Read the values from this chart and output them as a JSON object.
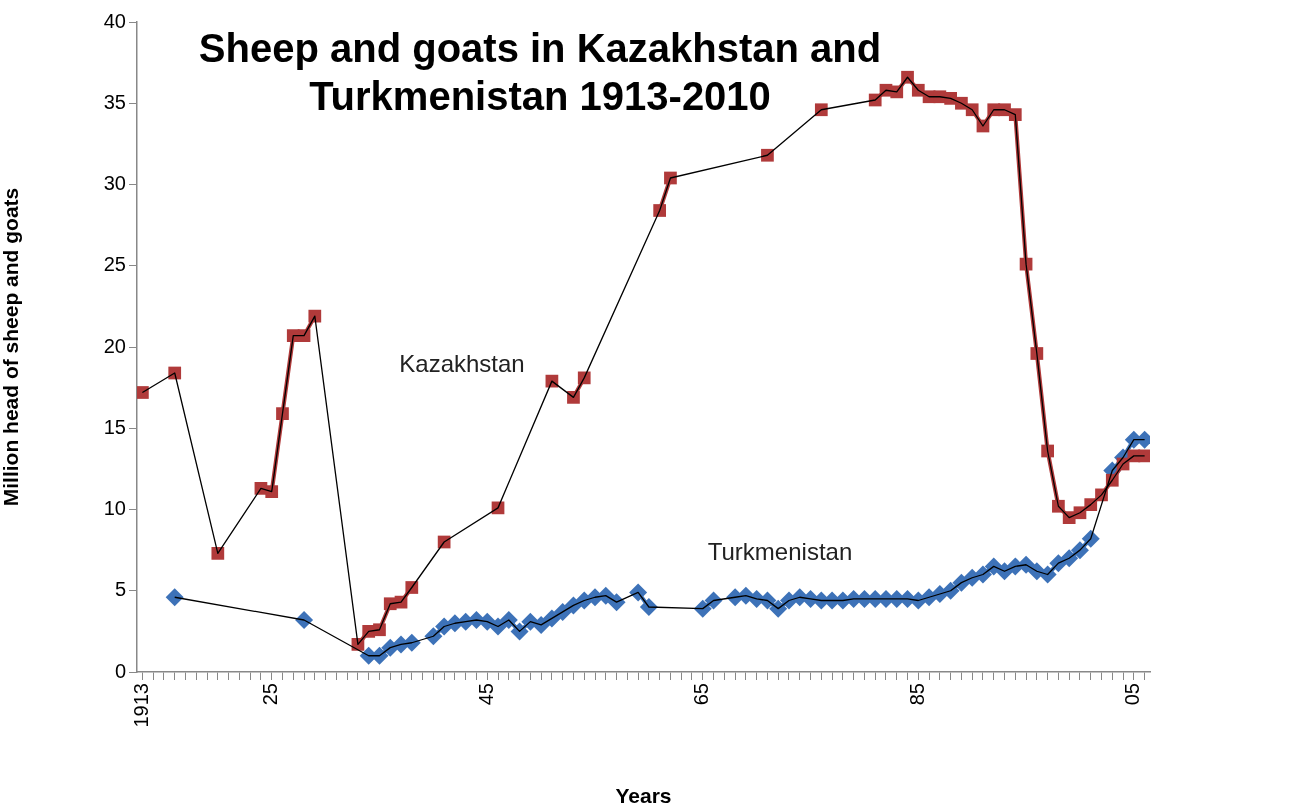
{
  "chart_data": {
    "type": "line",
    "title": "Sheep and goats in Kazakhstan and\nTurkmenistan 1913-2010",
    "xlabel": "Years",
    "ylabel": "Million head of sheep and goats",
    "xlim": [
      1912.5,
      2006.5
    ],
    "xticks": [
      {
        "value": 1913,
        "label": "1913"
      },
      {
        "value": 1914,
        "label": null
      },
      {
        "value": 1915,
        "label": null
      },
      {
        "value": 1916,
        "label": null
      },
      {
        "value": 1917,
        "label": null
      },
      {
        "value": 1918,
        "label": null
      },
      {
        "value": 1919,
        "label": null
      },
      {
        "value": 1920,
        "label": null
      },
      {
        "value": 1921,
        "label": null
      },
      {
        "value": 1922,
        "label": null
      },
      {
        "value": 1923,
        "label": null
      },
      {
        "value": 1924,
        "label": null
      },
      {
        "value": 1925,
        "label": "25"
      },
      {
        "value": 1926,
        "label": null
      },
      {
        "value": 1927,
        "label": null
      },
      {
        "value": 1928,
        "label": null
      },
      {
        "value": 1929,
        "label": null
      },
      {
        "value": 1930,
        "label": null
      },
      {
        "value": 1931,
        "label": null
      },
      {
        "value": 1932,
        "label": null
      },
      {
        "value": 1933,
        "label": null
      },
      {
        "value": 1934,
        "label": null
      },
      {
        "value": 1935,
        "label": null
      },
      {
        "value": 1936,
        "label": null
      },
      {
        "value": 1937,
        "label": null
      },
      {
        "value": 1938,
        "label": null
      },
      {
        "value": 1939,
        "label": null
      },
      {
        "value": 1940,
        "label": null
      },
      {
        "value": 1941,
        "label": null
      },
      {
        "value": 1942,
        "label": null
      },
      {
        "value": 1943,
        "label": null
      },
      {
        "value": 1944,
        "label": null
      },
      {
        "value": 1945,
        "label": "45"
      },
      {
        "value": 1946,
        "label": null
      },
      {
        "value": 1947,
        "label": null
      },
      {
        "value": 1948,
        "label": null
      },
      {
        "value": 1949,
        "label": null
      },
      {
        "value": 1950,
        "label": null
      },
      {
        "value": 1951,
        "label": null
      },
      {
        "value": 1952,
        "label": null
      },
      {
        "value": 1953,
        "label": null
      },
      {
        "value": 1954,
        "label": null
      },
      {
        "value": 1955,
        "label": null
      },
      {
        "value": 1956,
        "label": null
      },
      {
        "value": 1957,
        "label": null
      },
      {
        "value": 1958,
        "label": null
      },
      {
        "value": 1959,
        "label": null
      },
      {
        "value": 1960,
        "label": null
      },
      {
        "value": 1961,
        "label": null
      },
      {
        "value": 1962,
        "label": null
      },
      {
        "value": 1963,
        "label": null
      },
      {
        "value": 1964,
        "label": null
      },
      {
        "value": 1965,
        "label": "65"
      },
      {
        "value": 1966,
        "label": null
      },
      {
        "value": 1967,
        "label": null
      },
      {
        "value": 1968,
        "label": null
      },
      {
        "value": 1969,
        "label": null
      },
      {
        "value": 1970,
        "label": null
      },
      {
        "value": 1971,
        "label": null
      },
      {
        "value": 1972,
        "label": null
      },
      {
        "value": 1973,
        "label": null
      },
      {
        "value": 1974,
        "label": null
      },
      {
        "value": 1975,
        "label": null
      },
      {
        "value": 1976,
        "label": null
      },
      {
        "value": 1977,
        "label": null
      },
      {
        "value": 1978,
        "label": null
      },
      {
        "value": 1979,
        "label": null
      },
      {
        "value": 1980,
        "label": null
      },
      {
        "value": 1981,
        "label": null
      },
      {
        "value": 1982,
        "label": null
      },
      {
        "value": 1983,
        "label": null
      },
      {
        "value": 1984,
        "label": null
      },
      {
        "value": 1985,
        "label": "85"
      },
      {
        "value": 1986,
        "label": null
      },
      {
        "value": 1987,
        "label": null
      },
      {
        "value": 1988,
        "label": null
      },
      {
        "value": 1989,
        "label": null
      },
      {
        "value": 1990,
        "label": null
      },
      {
        "value": 1991,
        "label": null
      },
      {
        "value": 1992,
        "label": null
      },
      {
        "value": 1993,
        "label": null
      },
      {
        "value": 1994,
        "label": null
      },
      {
        "value": 1995,
        "label": null
      },
      {
        "value": 1996,
        "label": null
      },
      {
        "value": 1997,
        "label": null
      },
      {
        "value": 1998,
        "label": null
      },
      {
        "value": 1999,
        "label": null
      },
      {
        "value": 2000,
        "label": null
      },
      {
        "value": 2001,
        "label": null
      },
      {
        "value": 2002,
        "label": null
      },
      {
        "value": 2003,
        "label": null
      },
      {
        "value": 2004,
        "label": null
      },
      {
        "value": 2005,
        "label": "05"
      },
      {
        "value": 2006,
        "label": null
      }
    ],
    "ylim": [
      0,
      40
    ],
    "yticks": [
      0,
      5,
      10,
      15,
      20,
      25,
      30,
      35,
      40
    ],
    "grid": false,
    "legend": false,
    "series": [
      {
        "name": "Kazakhstan",
        "type": "line",
        "marker": "square",
        "color": "#b03a3a",
        "x": [
          1913,
          1914,
          1916,
          1917,
          1920,
          1921,
          1924,
          1925,
          1926,
          1927,
          1928,
          1929,
          1930,
          1933,
          1934,
          1935,
          1936,
          1937,
          1938,
          1939,
          1941,
          1942,
          1946,
          1947,
          1951,
          1952,
          1953,
          1954,
          1955,
          1961,
          1962,
          1963,
          1971,
          1972,
          1976,
          1977,
          1981,
          1982,
          1983,
          1984,
          1985,
          1986,
          1987,
          1988,
          1989,
          1990,
          1991,
          1992,
          1993,
          1994,
          1995,
          1996,
          1997,
          1998,
          1999,
          2000,
          2001,
          2002,
          2003,
          2004,
          2005,
          2006
        ],
        "values": [
          17.2,
          null,
          18.4,
          null,
          7.3,
          null,
          11.3,
          11.1,
          15.9,
          20.7,
          20.7,
          21.9,
          null,
          1.7,
          2.5,
          2.6,
          4.2,
          4.3,
          5.2,
          null,
          8.0,
          null,
          10.1,
          null,
          17.9,
          null,
          16.9,
          18.1,
          null,
          28.4,
          30.4,
          null,
          31.8,
          null,
          34.6,
          null,
          35.2,
          35.8,
          35.7,
          36.6,
          35.8,
          35.4,
          35.4,
          35.3,
          35.0,
          34.6,
          33.6,
          34.6,
          34.6,
          34.3,
          25.1,
          19.6,
          13.6,
          10.2,
          9.5,
          9.8,
          10.3,
          10.9,
          11.8,
          12.8,
          13.3,
          13.3
        ]
      },
      {
        "name": "Turkmenistan",
        "type": "line",
        "marker": "diamond",
        "color": "#3d72b8",
        "x": [
          1916,
          1917,
          1928,
          1929,
          1934,
          1935,
          1936,
          1937,
          1938,
          1939,
          1940,
          1941,
          1942,
          1943,
          1944,
          1945,
          1946,
          1947,
          1948,
          1949,
          1950,
          1951,
          1952,
          1953,
          1954,
          1955,
          1956,
          1957,
          1958,
          1959,
          1960,
          1961,
          1965,
          1966,
          1967,
          1968,
          1969,
          1970,
          1971,
          1972,
          1973,
          1974,
          1975,
          1976,
          1977,
          1978,
          1979,
          1980,
          1981,
          1982,
          1983,
          1984,
          1985,
          1986,
          1987,
          1988,
          1989,
          1990,
          1991,
          1992,
          1993,
          1994,
          1995,
          1996,
          1997,
          1998,
          1999,
          2000,
          2001,
          2002,
          2003,
          2004,
          2005,
          2006
        ],
        "values": [
          4.6,
          null,
          3.2,
          null,
          1.0,
          1.0,
          1.5,
          1.7,
          1.8,
          null,
          2.2,
          2.8,
          3.0,
          3.1,
          3.2,
          3.1,
          2.8,
          3.2,
          2.5,
          3.1,
          2.9,
          3.3,
          3.7,
          4.1,
          4.4,
          4.6,
          4.7,
          4.3,
          null,
          4.9,
          4.0,
          null,
          3.9,
          4.4,
          null,
          4.6,
          4.7,
          4.5,
          4.4,
          3.9,
          4.4,
          4.6,
          4.5,
          4.4,
          4.4,
          4.4,
          4.5,
          4.5,
          4.5,
          4.5,
          4.5,
          4.5,
          4.4,
          4.6,
          4.8,
          5.0,
          5.5,
          5.8,
          6.0,
          6.5,
          6.2,
          6.5,
          6.6,
          6.2,
          6.0,
          6.7,
          7.0,
          7.5,
          8.2,
          null,
          12.4,
          13.2,
          14.3,
          14.3
        ]
      },
      {
        "type": "line",
        "marker": "none",
        "color": "#000000",
        "x": [
          1913,
          1916,
          1920,
          1924,
          1925,
          1926,
          1927,
          1928,
          1929,
          1933,
          1934,
          1935,
          1936,
          1937,
          1938,
          1941,
          1946,
          1951,
          1953,
          1954,
          1961,
          1962,
          1971,
          1976,
          1981,
          1982,
          1983,
          1984,
          1985,
          1986,
          1987,
          1988,
          1989,
          1990,
          1991,
          1992,
          1993,
          1994,
          1995,
          1996,
          1997,
          1998,
          1999,
          2000,
          2001,
          2002,
          2003,
          2004,
          2005,
          2006
        ],
        "values": [
          17.2,
          18.4,
          7.3,
          11.3,
          11.1,
          15.9,
          20.7,
          20.7,
          21.9,
          1.7,
          2.5,
          2.6,
          4.2,
          4.3,
          5.2,
          8.0,
          10.1,
          17.9,
          16.9,
          18.1,
          28.4,
          30.4,
          31.8,
          34.6,
          35.2,
          35.8,
          35.7,
          36.6,
          35.8,
          35.4,
          35.4,
          35.3,
          35.0,
          34.6,
          33.6,
          34.6,
          34.6,
          34.3,
          25.1,
          19.6,
          13.6,
          10.2,
          9.5,
          9.8,
          10.3,
          10.9,
          11.8,
          12.8,
          13.3,
          13.3
        ]
      },
      {
        "type": "line",
        "marker": "none",
        "color": "#000000",
        "x": [
          1916,
          1928,
          1934,
          1935,
          1936,
          1937,
          1938,
          1940,
          1941,
          1942,
          1943,
          1944,
          1945,
          1946,
          1947,
          1948,
          1949,
          1950,
          1951,
          1952,
          1953,
          1954,
          1955,
          1956,
          1957,
          1959,
          1960,
          1965,
          1966,
          1968,
          1969,
          1970,
          1971,
          1972,
          1973,
          1974,
          1975,
          1976,
          1977,
          1978,
          1979,
          1980,
          1981,
          1982,
          1983,
          1984,
          1985,
          1986,
          1987,
          1988,
          1989,
          1990,
          1991,
          1992,
          1993,
          1994,
          1995,
          1996,
          1997,
          1998,
          1999,
          2000,
          2001,
          2003,
          2004,
          2005,
          2006
        ],
        "values": [
          4.6,
          3.2,
          1.0,
          1.0,
          1.5,
          1.7,
          1.8,
          2.2,
          2.8,
          3.0,
          3.1,
          3.2,
          3.1,
          2.8,
          3.2,
          2.5,
          3.1,
          2.9,
          3.3,
          3.7,
          4.1,
          4.4,
          4.6,
          4.7,
          4.3,
          4.9,
          4.0,
          3.9,
          4.4,
          4.6,
          4.7,
          4.5,
          4.4,
          3.9,
          4.4,
          4.6,
          4.5,
          4.4,
          4.4,
          4.4,
          4.5,
          4.5,
          4.5,
          4.5,
          4.5,
          4.5,
          4.4,
          4.6,
          4.8,
          5.0,
          5.5,
          5.8,
          6.0,
          6.5,
          6.2,
          6.5,
          6.6,
          6.2,
          6.0,
          6.7,
          7.0,
          7.5,
          8.2,
          12.4,
          13.2,
          14.3,
          14.3
        ]
      }
    ]
  }
}
